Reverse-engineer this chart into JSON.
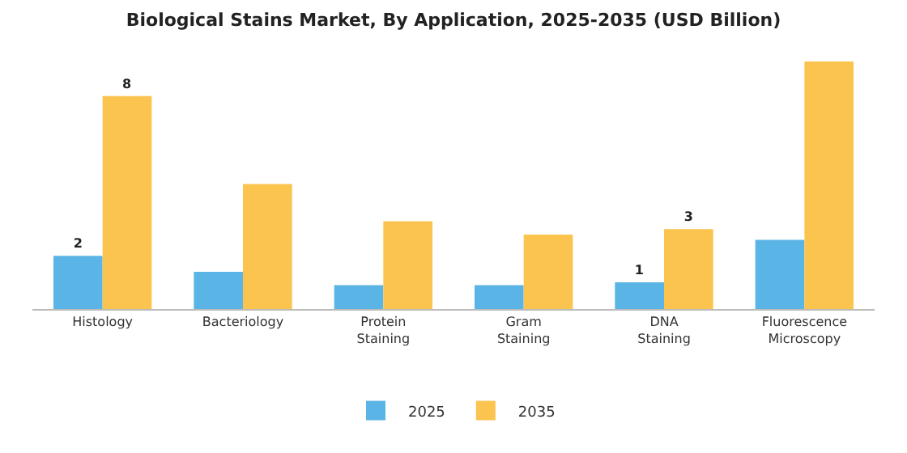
{
  "chart_data": {
    "type": "bar",
    "title": "Biological Stains Market, By Application, 2025-2035 (USD Billion)",
    "categories": [
      "Histology",
      "Bacteriology",
      "Protein Staining",
      "Gram Staining",
      "DNA Staining",
      "Fluorescence Microscopy"
    ],
    "series": [
      {
        "name": "2025",
        "color": "#5ab4e5",
        "values": [
          2,
          1.4,
          0.9,
          0.9,
          1,
          2.6
        ],
        "value_labels": [
          "2",
          null,
          null,
          null,
          "1",
          null
        ]
      },
      {
        "name": "2035",
        "color": "#fbc44f",
        "values": [
          8,
          4.7,
          3.3,
          2.8,
          3,
          9.3
        ],
        "value_labels": [
          "8",
          null,
          null,
          null,
          "3",
          null
        ]
      }
    ],
    "legend": "bottom"
  }
}
